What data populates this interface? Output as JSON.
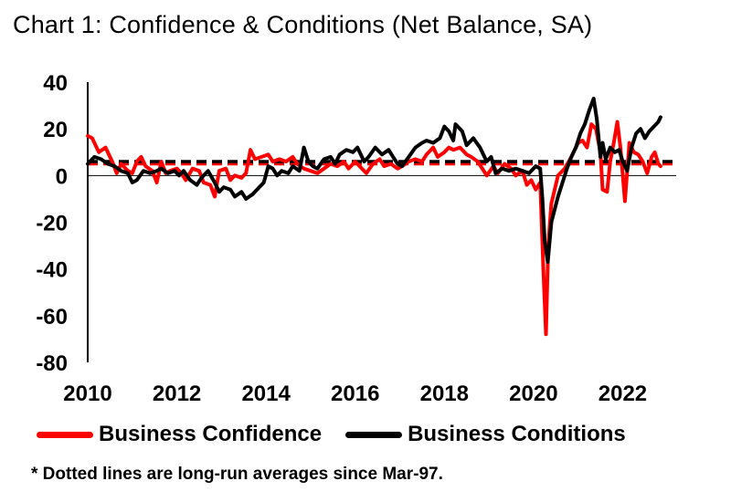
{
  "chart_data": {
    "type": "line",
    "title": "Chart 1: Confidence & Conditions (Net Balance, SA)",
    "xlabel": "",
    "ylabel": "",
    "xlim": [
      2010.0,
      2023.2
    ],
    "ylim": [
      -80,
      40
    ],
    "x_ticks": [
      "2010",
      "2012",
      "2014",
      "2016",
      "2018",
      "2020",
      "2022"
    ],
    "x_tick_values": [
      2010,
      2012,
      2014,
      2016,
      2018,
      2020,
      2022
    ],
    "y_ticks": [
      "40",
      "20",
      "0",
      "-20",
      "-40",
      "-60",
      "-80"
    ],
    "y_tick_values": [
      40,
      20,
      0,
      -20,
      -40,
      -60,
      -80
    ],
    "colors": {
      "confidence": "#ff0000",
      "conditions": "#000000"
    },
    "series": [
      {
        "name": "Business Confidence",
        "color": "#ff0000",
        "points": [
          [
            2010.0,
            17
          ],
          [
            2010.1,
            16
          ],
          [
            2010.25,
            10
          ],
          [
            2010.4,
            12
          ],
          [
            2010.55,
            6
          ],
          [
            2010.65,
            1
          ],
          [
            2010.75,
            5
          ],
          [
            2010.9,
            2
          ],
          [
            2011.0,
            1
          ],
          [
            2011.1,
            6
          ],
          [
            2011.2,
            8
          ],
          [
            2011.3,
            4
          ],
          [
            2011.45,
            2
          ],
          [
            2011.55,
            -3
          ],
          [
            2011.65,
            6
          ],
          [
            2011.75,
            1
          ],
          [
            2011.85,
            2
          ],
          [
            2012.0,
            3
          ],
          [
            2012.1,
            1
          ],
          [
            2012.2,
            -2
          ],
          [
            2012.35,
            3
          ],
          [
            2012.5,
            2
          ],
          [
            2012.6,
            -3
          ],
          [
            2012.75,
            -4
          ],
          [
            2012.85,
            -9
          ],
          [
            2012.95,
            2
          ],
          [
            2013.1,
            3
          ],
          [
            2013.2,
            -2
          ],
          [
            2013.3,
            0
          ],
          [
            2013.45,
            -1
          ],
          [
            2013.55,
            1
          ],
          [
            2013.65,
            11
          ],
          [
            2013.75,
            7
          ],
          [
            2013.9,
            8
          ],
          [
            2014.05,
            9
          ],
          [
            2014.15,
            6
          ],
          [
            2014.3,
            7
          ],
          [
            2014.45,
            6
          ],
          [
            2014.6,
            8
          ],
          [
            2014.7,
            5
          ],
          [
            2014.85,
            3
          ],
          [
            2015.0,
            2
          ],
          [
            2015.15,
            1
          ],
          [
            2015.3,
            3
          ],
          [
            2015.45,
            5
          ],
          [
            2015.6,
            4
          ],
          [
            2015.75,
            6
          ],
          [
            2015.85,
            3
          ],
          [
            2016.0,
            6
          ],
          [
            2016.1,
            4
          ],
          [
            2016.25,
            1
          ],
          [
            2016.4,
            5
          ],
          [
            2016.55,
            7
          ],
          [
            2016.65,
            4
          ],
          [
            2016.8,
            5
          ],
          [
            2016.95,
            3
          ],
          [
            2017.05,
            4
          ],
          [
            2017.2,
            6
          ],
          [
            2017.35,
            7
          ],
          [
            2017.5,
            6
          ],
          [
            2017.6,
            9
          ],
          [
            2017.75,
            12
          ],
          [
            2017.85,
            8
          ],
          [
            2018.0,
            10
          ],
          [
            2018.1,
            12
          ],
          [
            2018.2,
            11
          ],
          [
            2018.35,
            12
          ],
          [
            2018.5,
            9
          ],
          [
            2018.6,
            8
          ],
          [
            2018.75,
            6
          ],
          [
            2018.85,
            3
          ],
          [
            2018.95,
            0
          ],
          [
            2019.1,
            4
          ],
          [
            2019.2,
            1
          ],
          [
            2019.35,
            5
          ],
          [
            2019.5,
            3
          ],
          [
            2019.6,
            0
          ],
          [
            2019.75,
            2
          ],
          [
            2019.85,
            -4
          ],
          [
            2019.95,
            -2
          ],
          [
            2020.05,
            -6
          ],
          [
            2020.15,
            -3
          ],
          [
            2020.22,
            -40
          ],
          [
            2020.28,
            -68
          ],
          [
            2020.33,
            -30
          ],
          [
            2020.4,
            -12
          ],
          [
            2020.55,
            0
          ],
          [
            2020.7,
            3
          ],
          [
            2020.85,
            8
          ],
          [
            2021.0,
            14
          ],
          [
            2021.1,
            15
          ],
          [
            2021.2,
            12
          ],
          [
            2021.3,
            22
          ],
          [
            2021.4,
            20
          ],
          [
            2021.5,
            10
          ],
          [
            2021.55,
            -6
          ],
          [
            2021.65,
            -7
          ],
          [
            2021.72,
            6
          ],
          [
            2021.8,
            14
          ],
          [
            2021.88,
            23
          ],
          [
            2021.95,
            12
          ],
          [
            2022.05,
            -11
          ],
          [
            2022.15,
            14
          ],
          [
            2022.25,
            10
          ],
          [
            2022.35,
            9
          ],
          [
            2022.45,
            6
          ],
          [
            2022.55,
            1
          ],
          [
            2022.65,
            8
          ],
          [
            2022.72,
            10
          ],
          [
            2022.8,
            5
          ],
          [
            2022.85,
            4
          ]
        ]
      },
      {
        "name": "Business Conditions",
        "color": "#000000",
        "points": [
          [
            2010.0,
            5
          ],
          [
            2010.15,
            8
          ],
          [
            2010.3,
            7
          ],
          [
            2010.45,
            5
          ],
          [
            2010.6,
            4
          ],
          [
            2010.75,
            2
          ],
          [
            2010.9,
            1
          ],
          [
            2011.0,
            -3
          ],
          [
            2011.1,
            -2
          ],
          [
            2011.25,
            2
          ],
          [
            2011.4,
            1
          ],
          [
            2011.55,
            2
          ],
          [
            2011.65,
            3
          ],
          [
            2011.8,
            1
          ],
          [
            2011.95,
            2
          ],
          [
            2012.05,
            0
          ],
          [
            2012.15,
            2
          ],
          [
            2012.3,
            -2
          ],
          [
            2012.45,
            -4
          ],
          [
            2012.55,
            -1
          ],
          [
            2012.7,
            2
          ],
          [
            2012.85,
            -3
          ],
          [
            2012.95,
            -7
          ],
          [
            2013.05,
            -5
          ],
          [
            2013.2,
            -6
          ],
          [
            2013.3,
            -9
          ],
          [
            2013.45,
            -7
          ],
          [
            2013.55,
            -10
          ],
          [
            2013.7,
            -8
          ],
          [
            2013.85,
            -5
          ],
          [
            2013.95,
            -3
          ],
          [
            2014.05,
            4
          ],
          [
            2014.15,
            3
          ],
          [
            2014.25,
            0
          ],
          [
            2014.35,
            2
          ],
          [
            2014.5,
            1
          ],
          [
            2014.6,
            4
          ],
          [
            2014.75,
            2
          ],
          [
            2014.85,
            12
          ],
          [
            2014.95,
            6
          ],
          [
            2015.05,
            4
          ],
          [
            2015.15,
            3
          ],
          [
            2015.3,
            7
          ],
          [
            2015.45,
            8
          ],
          [
            2015.55,
            5
          ],
          [
            2015.65,
            9
          ],
          [
            2015.8,
            11
          ],
          [
            2015.95,
            10
          ],
          [
            2016.05,
            12
          ],
          [
            2016.2,
            6
          ],
          [
            2016.3,
            8
          ],
          [
            2016.45,
            12
          ],
          [
            2016.6,
            9
          ],
          [
            2016.75,
            11
          ],
          [
            2016.85,
            8
          ],
          [
            2016.95,
            5
          ],
          [
            2017.05,
            4
          ],
          [
            2017.2,
            8
          ],
          [
            2017.35,
            12
          ],
          [
            2017.5,
            14
          ],
          [
            2017.6,
            15
          ],
          [
            2017.75,
            14
          ],
          [
            2017.9,
            16
          ],
          [
            2018.0,
            21
          ],
          [
            2018.1,
            19
          ],
          [
            2018.2,
            15
          ],
          [
            2018.25,
            22
          ],
          [
            2018.4,
            19
          ],
          [
            2018.5,
            13
          ],
          [
            2018.65,
            16
          ],
          [
            2018.8,
            12
          ],
          [
            2018.95,
            6
          ],
          [
            2019.05,
            8
          ],
          [
            2019.15,
            1
          ],
          [
            2019.3,
            3
          ],
          [
            2019.45,
            2
          ],
          [
            2019.6,
            3
          ],
          [
            2019.75,
            2
          ],
          [
            2019.9,
            1
          ],
          [
            2020.05,
            4
          ],
          [
            2020.15,
            3
          ],
          [
            2020.2,
            -10
          ],
          [
            2020.25,
            -28
          ],
          [
            2020.32,
            -37
          ],
          [
            2020.4,
            -20
          ],
          [
            2020.55,
            -9
          ],
          [
            2020.65,
            -3
          ],
          [
            2020.75,
            3
          ],
          [
            2020.85,
            8
          ],
          [
            2020.95,
            12
          ],
          [
            2021.05,
            18
          ],
          [
            2021.15,
            22
          ],
          [
            2021.25,
            28
          ],
          [
            2021.35,
            33
          ],
          [
            2021.42,
            24
          ],
          [
            2021.5,
            8
          ],
          [
            2021.55,
            14
          ],
          [
            2021.62,
            7
          ],
          [
            2021.72,
            12
          ],
          [
            2021.82,
            10
          ],
          [
            2021.92,
            11
          ],
          [
            2022.0,
            6
          ],
          [
            2022.1,
            2
          ],
          [
            2022.2,
            12
          ],
          [
            2022.3,
            18
          ],
          [
            2022.4,
            20
          ],
          [
            2022.5,
            16
          ],
          [
            2022.6,
            19
          ],
          [
            2022.7,
            21
          ],
          [
            2022.8,
            23
          ],
          [
            2022.85,
            25
          ]
        ]
      }
    ],
    "reference_lines": [
      {
        "name": "confidence-average",
        "value": 5,
        "color": "#ff0000",
        "style": "dotted"
      },
      {
        "name": "conditions-average",
        "value": 6,
        "color": "#000000",
        "style": "dotted"
      }
    ],
    "legend": {
      "position": "bottom",
      "items": [
        {
          "label": "Business Confidence",
          "color": "#ff0000"
        },
        {
          "label": "Business Conditions",
          "color": "#000000"
        }
      ]
    },
    "footnote": "* Dotted lines are long-run averages since Mar-97."
  }
}
